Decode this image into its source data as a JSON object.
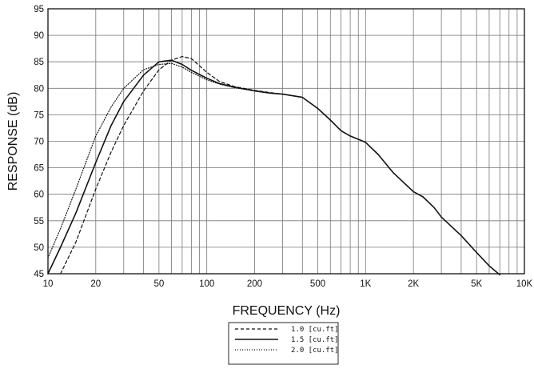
{
  "chart_data": {
    "type": "line",
    "xlabel": "FREQUENCY (Hz)",
    "ylabel": "RESPONSE (dB)",
    "x_scale": "log",
    "xlim": [
      10,
      10000
    ],
    "ylim": [
      45,
      95
    ],
    "grid": true,
    "legend_position": "bottom-center",
    "x_ticks": [
      {
        "value": 10,
        "label": "10"
      },
      {
        "value": 20,
        "label": "20"
      },
      {
        "value": 50,
        "label": "50"
      },
      {
        "value": 100,
        "label": "100"
      },
      {
        "value": 200,
        "label": "200"
      },
      {
        "value": 500,
        "label": "500"
      },
      {
        "value": 1000,
        "label": "1K"
      },
      {
        "value": 2000,
        "label": "2K"
      },
      {
        "value": 5000,
        "label": "5K"
      },
      {
        "value": 10000,
        "label": "10K"
      }
    ],
    "y_ticks": [
      45,
      50,
      55,
      60,
      65,
      70,
      75,
      80,
      85,
      90,
      95
    ],
    "series": [
      {
        "name": "1.0 [cu.ft]",
        "style": "dashed",
        "points": [
          [
            12,
            45
          ],
          [
            15,
            51
          ],
          [
            20,
            61
          ],
          [
            25,
            68
          ],
          [
            30,
            73
          ],
          [
            40,
            79.5
          ],
          [
            50,
            83.5
          ],
          [
            60,
            85.3
          ],
          [
            70,
            86
          ],
          [
            80,
            85.6
          ],
          [
            100,
            83
          ],
          [
            120,
            81.3
          ],
          [
            150,
            80.3
          ],
          [
            200,
            79.6
          ],
          [
            250,
            79.2
          ],
          [
            300,
            78.9
          ],
          [
            400,
            78.3
          ]
        ]
      },
      {
        "name": "1.5 [cu.ft]",
        "style": "solid",
        "points": [
          [
            10,
            45
          ],
          [
            12,
            50
          ],
          [
            15,
            56.5
          ],
          [
            20,
            66
          ],
          [
            25,
            73
          ],
          [
            30,
            77.5
          ],
          [
            40,
            82.5
          ],
          [
            50,
            85
          ],
          [
            60,
            85.3
          ],
          [
            70,
            84.5
          ],
          [
            80,
            83.4
          ],
          [
            100,
            81.9
          ],
          [
            120,
            80.9
          ],
          [
            150,
            80.2
          ],
          [
            200,
            79.5
          ],
          [
            250,
            79.1
          ],
          [
            300,
            78.9
          ],
          [
            400,
            78.3
          ],
          [
            500,
            76.2
          ],
          [
            600,
            74
          ],
          [
            700,
            72
          ],
          [
            800,
            71
          ],
          [
            1000,
            69.8
          ],
          [
            1200,
            67.5
          ],
          [
            1500,
            64
          ],
          [
            2000,
            60.5
          ],
          [
            2300,
            59.5
          ],
          [
            2700,
            57.5
          ],
          [
            3000,
            55.7
          ],
          [
            4000,
            52.2
          ],
          [
            5000,
            49
          ],
          [
            6000,
            46.5
          ],
          [
            7000,
            44.8
          ]
        ]
      },
      {
        "name": "2.0 [cu.ft]",
        "style": "dotted",
        "points": [
          [
            10,
            48
          ],
          [
            12,
            53.5
          ],
          [
            15,
            61
          ],
          [
            20,
            71
          ],
          [
            25,
            76.5
          ],
          [
            30,
            80
          ],
          [
            40,
            83.5
          ],
          [
            50,
            84.5
          ],
          [
            60,
            84.7
          ],
          [
            70,
            84
          ],
          [
            80,
            83
          ],
          [
            100,
            81.6
          ],
          [
            120,
            80.8
          ],
          [
            150,
            80.1
          ],
          [
            200,
            79.5
          ],
          [
            250,
            79.1
          ],
          [
            300,
            78.9
          ],
          [
            400,
            78.3
          ]
        ]
      }
    ]
  }
}
